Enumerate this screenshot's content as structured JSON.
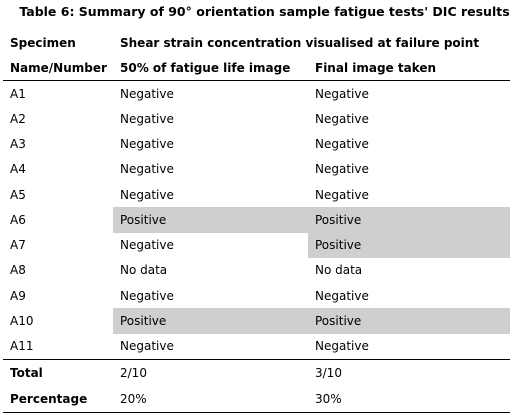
{
  "caption": "Table 6: Summary of 90° orientation sample fatigue tests' DIC results",
  "headers": {
    "specimen_line1": "Specimen",
    "specimen_line2": "Name/Number",
    "group": "Shear strain concentration visualised at failure point",
    "col_50": "50% of fatigue life image",
    "col_final": "Final image taken"
  },
  "rows": [
    {
      "specimen": "A1",
      "half_life": "Negative",
      "final": "Negative"
    },
    {
      "specimen": "A2",
      "half_life": "Negative",
      "final": "Negative"
    },
    {
      "specimen": "A3",
      "half_life": "Negative",
      "final": "Negative"
    },
    {
      "specimen": "A4",
      "half_life": "Negative",
      "final": "Negative"
    },
    {
      "specimen": "A5",
      "half_life": "Negative",
      "final": "Negative"
    },
    {
      "specimen": "A6",
      "half_life": "Positive",
      "final": "Positive"
    },
    {
      "specimen": "A7",
      "half_life": "Negative",
      "final": "Positive"
    },
    {
      "specimen": "A8",
      "half_life": "No data",
      "final": "No data"
    },
    {
      "specimen": "A9",
      "half_life": "Negative",
      "final": "Negative"
    },
    {
      "specimen": "A10",
      "half_life": "Positive",
      "final": "Positive"
    },
    {
      "specimen": "A11",
      "half_life": "Negative",
      "final": "Negative"
    }
  ],
  "summary": {
    "total_label": "Total",
    "total_half": "2/10",
    "total_final": "3/10",
    "percentage_label": "Percentage",
    "percentage_half": "20%",
    "percentage_final": "30%"
  },
  "colors": {
    "highlight": "#d0cece",
    "rule": "#000000"
  }
}
